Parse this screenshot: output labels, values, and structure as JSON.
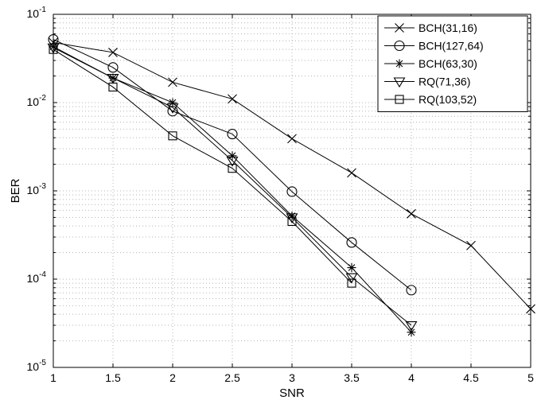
{
  "chart_data": {
    "type": "line",
    "xlabel": "SNR",
    "ylabel": "BER",
    "xlim": [
      1,
      5
    ],
    "ylim": [
      1e-05,
      0.1
    ],
    "yscale": "log",
    "grid": true,
    "legend_position": "top-right",
    "x_ticks": [
      "1",
      "1.5",
      "2",
      "2.5",
      "3",
      "3.5",
      "4",
      "4.5",
      "5"
    ],
    "x_tick_values": [
      1,
      1.5,
      2,
      2.5,
      3,
      3.5,
      4,
      4.5,
      5
    ],
    "y_ticks": [
      {
        "base": "10",
        "exp": "-5",
        "value": 1e-05
      },
      {
        "base": "10",
        "exp": "-4",
        "value": 0.0001
      },
      {
        "base": "10",
        "exp": "-3",
        "value": 0.001
      },
      {
        "base": "10",
        "exp": "-2",
        "value": 0.01
      },
      {
        "base": "10",
        "exp": "-1",
        "value": 0.1
      }
    ],
    "series": [
      {
        "name": "BCH(31,16)",
        "marker": "x",
        "x": [
          1,
          1.5,
          2,
          2.5,
          3,
          3.5,
          4,
          4.5,
          5
        ],
        "y": [
          0.048,
          0.037,
          0.017,
          0.011,
          0.0039,
          0.0016,
          0.00055,
          0.00024,
          4.6e-05
        ]
      },
      {
        "name": "BCH(127,64)",
        "marker": "circle",
        "x": [
          1,
          1.5,
          2,
          2.5,
          3,
          3.5,
          4
        ],
        "y": [
          0.052,
          0.025,
          0.008,
          0.0044,
          0.00098,
          0.00026,
          7.5e-05
        ]
      },
      {
        "name": "BCH(63,30)",
        "marker": "star",
        "x": [
          1,
          1.5,
          2,
          2.5,
          3,
          3.5,
          4
        ],
        "y": [
          0.043,
          0.019,
          0.01,
          0.0025,
          0.00052,
          0.000135,
          2.5e-05
        ]
      },
      {
        "name": "RQ(71,36)",
        "marker": "triangle-down",
        "x": [
          1,
          1.5,
          2,
          2.5,
          3,
          3.5,
          4
        ],
        "y": [
          0.042,
          0.019,
          0.0088,
          0.0022,
          0.0005,
          0.000105,
          3e-05
        ]
      },
      {
        "name": "RQ(103,52)",
        "marker": "square",
        "x": [
          1,
          1.5,
          2,
          2.5,
          3,
          3.5
        ],
        "y": [
          0.04,
          0.015,
          0.0042,
          0.0018,
          0.00045,
          9e-05
        ]
      }
    ],
    "colors": {
      "line": "#000000",
      "grid": "#b4b4b4",
      "background": "#ffffff"
    }
  }
}
